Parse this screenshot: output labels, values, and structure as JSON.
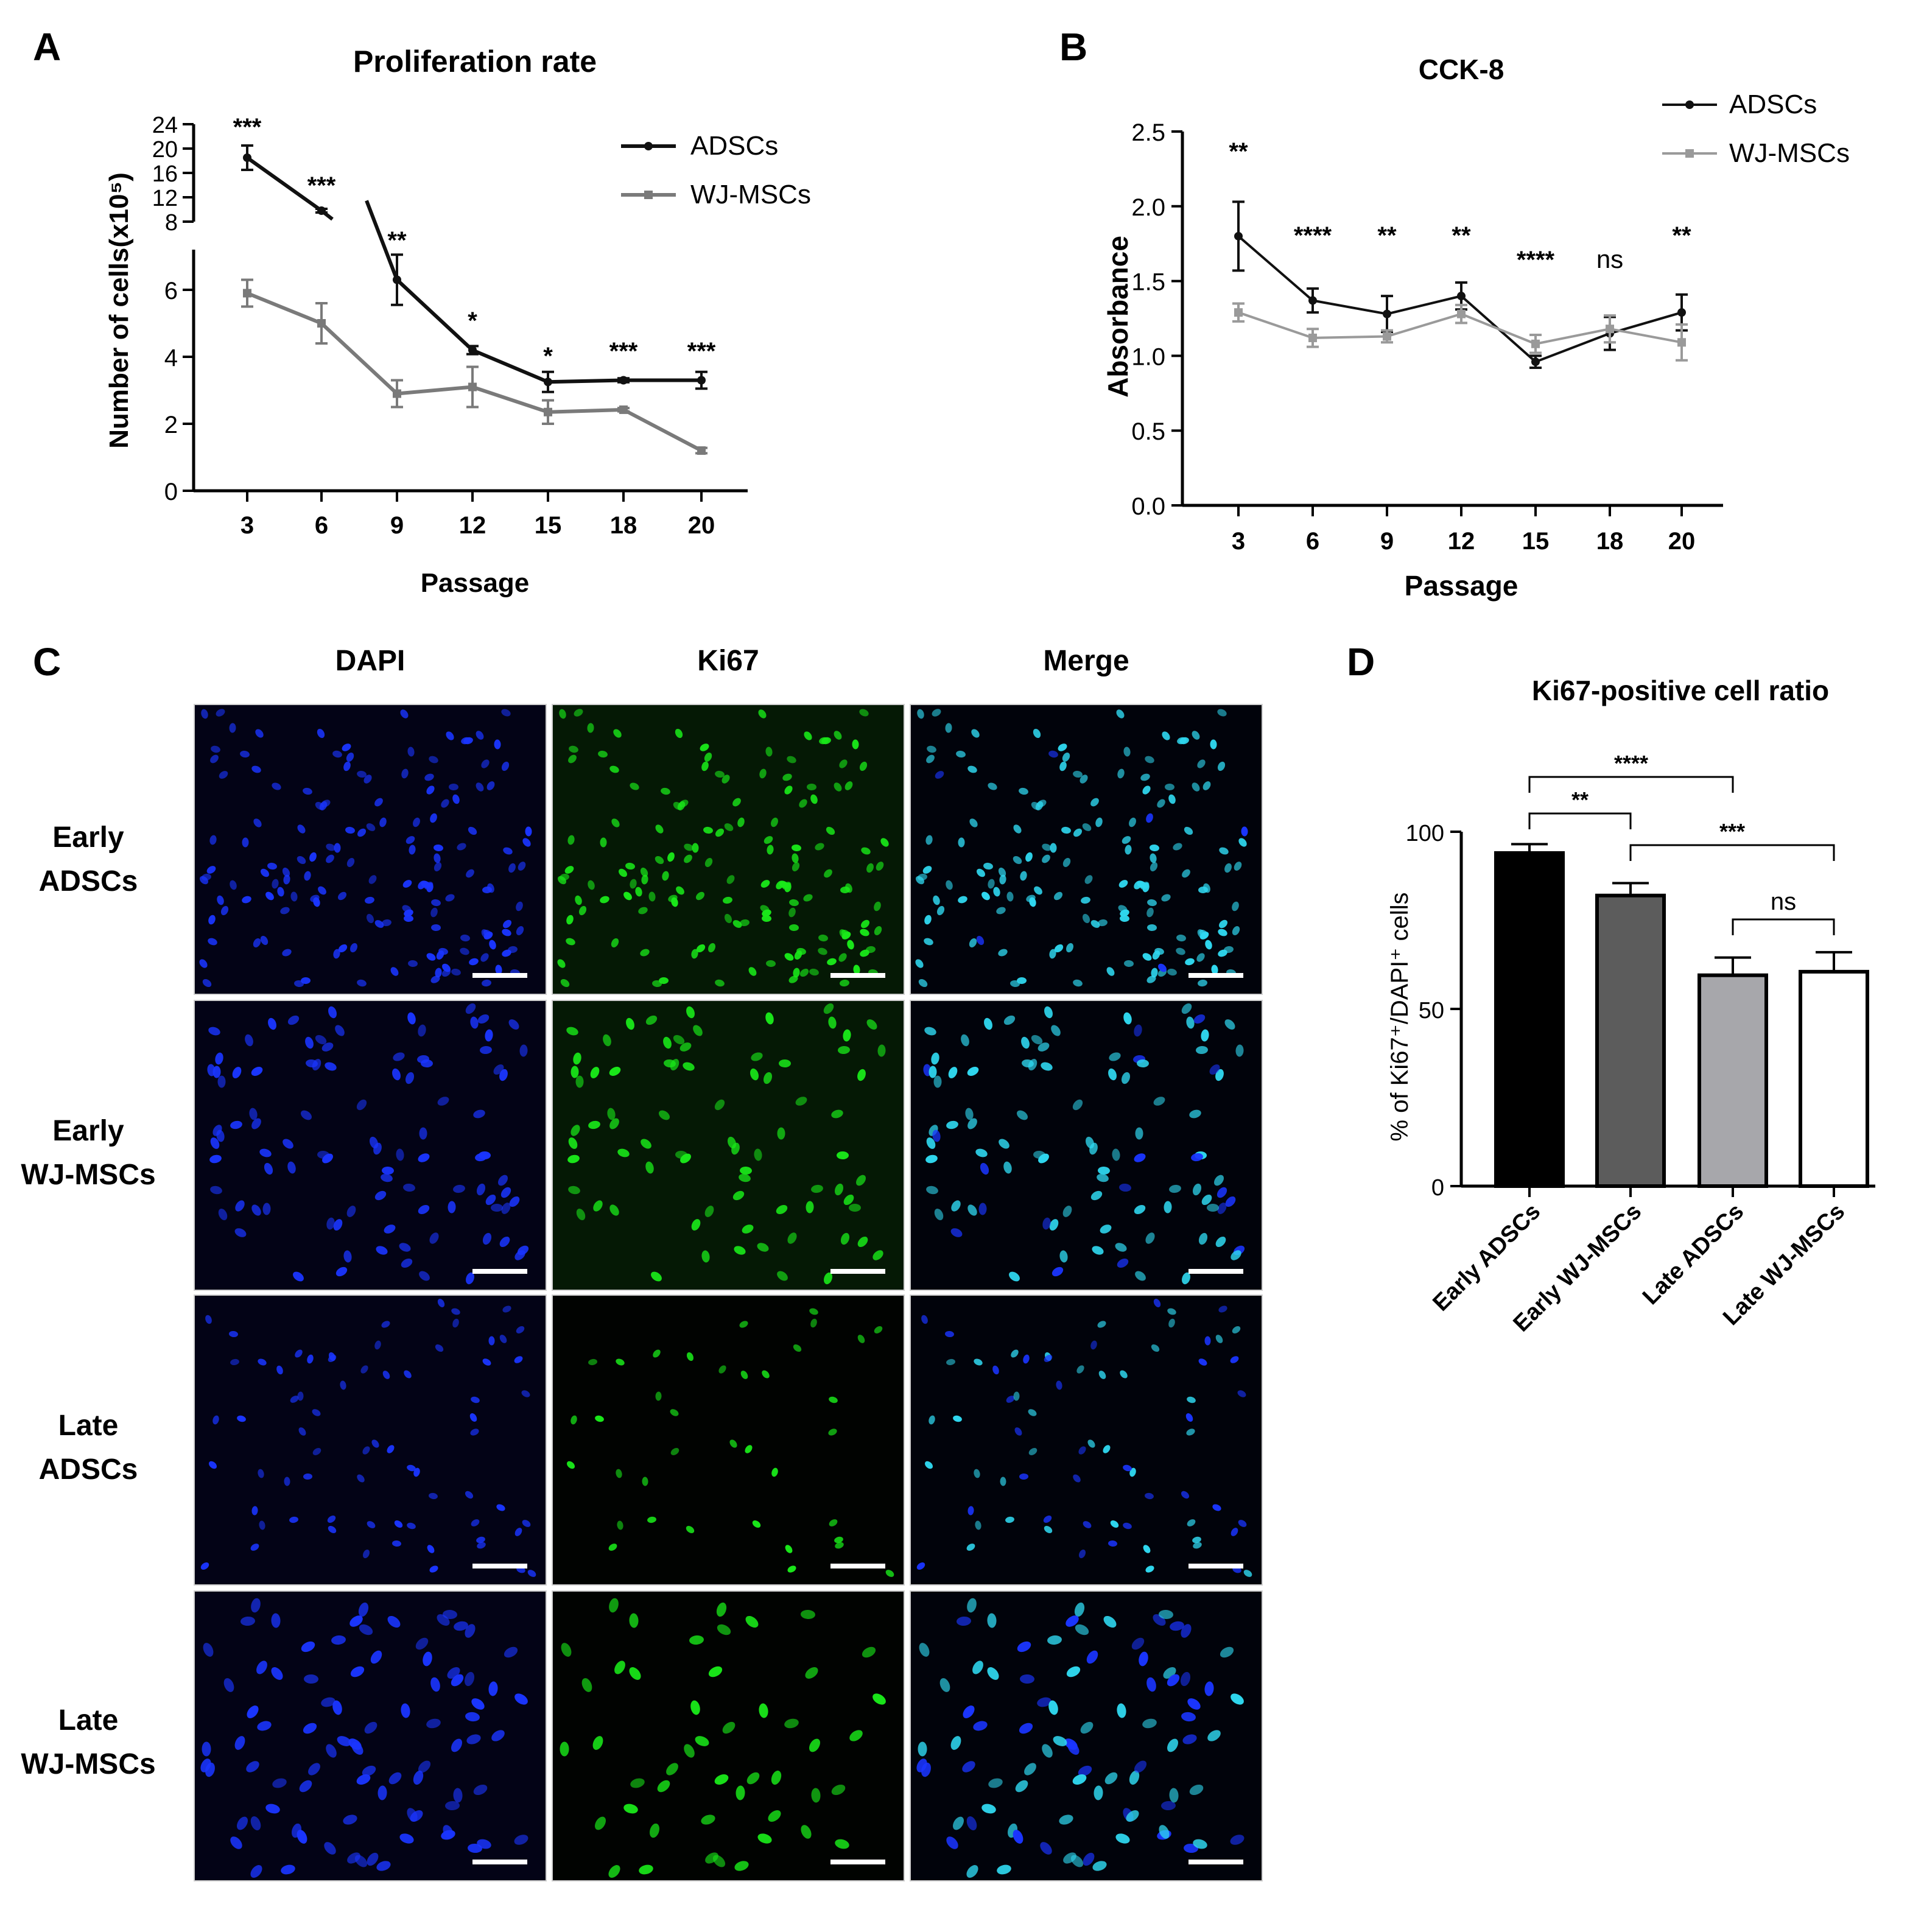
{
  "panels": {
    "a": "A",
    "b": "B",
    "c": "C",
    "d": "D"
  },
  "colors": {
    "adscs": "#111111",
    "wjmscs": "#7a7a7a",
    "wjmscs_b": "#9a9a9a",
    "dapi": "#1a35ff",
    "ki67": "#19e819",
    "merge": "#2fd8f0",
    "bar_early_adscs": "#000000",
    "bar_early_wj": "#5c5c5c",
    "bar_late_adscs": "#a7a7ab",
    "bar_late_wj": "#ffffff"
  },
  "micrograph": {
    "columns": [
      "DAPI",
      "Ki67",
      "Merge"
    ],
    "rows": [
      [
        "Early",
        "ADSCs"
      ],
      [
        "Early",
        "WJ-MSCs"
      ],
      [
        "Late",
        "ADSCs"
      ],
      [
        "Late",
        "WJ-MSCs"
      ]
    ]
  },
  "chart_data": [
    {
      "type": "line",
      "title": "Proliferation rate",
      "xlabel": "Passage",
      "ylabel": "Number of cells(x10⁵)",
      "categories": [
        "3",
        "6",
        "9",
        "12",
        "15",
        "18",
        "20"
      ],
      "y_ticks_lower": [
        "0",
        "2",
        "4",
        "6"
      ],
      "y_ticks_upper": [
        "8",
        "12",
        "16",
        "20",
        "24"
      ],
      "ylim_lower": [
        0,
        7.2
      ],
      "ylim_upper": [
        8,
        24
      ],
      "broken_axis": true,
      "legend": "top-right",
      "series": [
        {
          "name": "ADSCs",
          "values": [
            18.5,
            9.8,
            6.3,
            4.2,
            3.25,
            3.3,
            3.3
          ],
          "errors": [
            2.0,
            0.3,
            0.75,
            0.12,
            0.3,
            0.06,
            0.25
          ]
        },
        {
          "name": "WJ-MSCs",
          "values": [
            5.9,
            5.0,
            2.9,
            3.1,
            2.35,
            2.42,
            1.2
          ],
          "errors": [
            0.4,
            0.6,
            0.4,
            0.6,
            0.35,
            0.05,
            0.08
          ]
        }
      ],
      "significance": [
        "***",
        "***",
        "**",
        "*",
        "*",
        "***",
        "***"
      ]
    },
    {
      "type": "line",
      "title": "CCK-8",
      "xlabel": "Passage",
      "ylabel": "Absorbance",
      "categories": [
        "3",
        "6",
        "9",
        "12",
        "15",
        "18",
        "20"
      ],
      "y_ticks": [
        "0.0",
        "0.5",
        "1.0",
        "1.5",
        "2.0",
        "2.5"
      ],
      "ylim": [
        0,
        2.5
      ],
      "legend": "top-right",
      "series": [
        {
          "name": "ADSCs",
          "values": [
            1.8,
            1.37,
            1.28,
            1.4,
            0.96,
            1.15,
            1.29
          ],
          "errors": [
            0.23,
            0.08,
            0.12,
            0.09,
            0.04,
            0.11,
            0.12
          ]
        },
        {
          "name": "WJ-MSCs",
          "values": [
            1.29,
            1.12,
            1.13,
            1.28,
            1.08,
            1.18,
            1.09
          ],
          "errors": [
            0.06,
            0.06,
            0.04,
            0.06,
            0.06,
            0.09,
            0.12
          ]
        }
      ],
      "significance": [
        "**",
        "****",
        "**",
        "**",
        "****",
        "ns",
        "**"
      ]
    },
    {
      "type": "bar",
      "title": "Ki67-positive cell ratio",
      "ylabel": "% of Ki67⁺/DAPI⁺ cells",
      "categories": [
        "Early ADSCs",
        "Early WJ-MSCs",
        "Late ADSCs",
        "Late WJ-MSCs"
      ],
      "values": [
        94,
        82,
        59.5,
        60.5
      ],
      "errors": [
        2.5,
        3.5,
        5.0,
        5.5
      ],
      "y_ticks": [
        "0",
        "50",
        "100"
      ],
      "ylim": [
        0,
        100
      ],
      "comparisons": [
        {
          "from": 0,
          "to": 2,
          "label": "****"
        },
        {
          "from": 0,
          "to": 1,
          "label": "**"
        },
        {
          "from": 1,
          "to": 3,
          "label": "***"
        },
        {
          "from": 2,
          "to": 3,
          "label": "ns"
        }
      ]
    }
  ]
}
